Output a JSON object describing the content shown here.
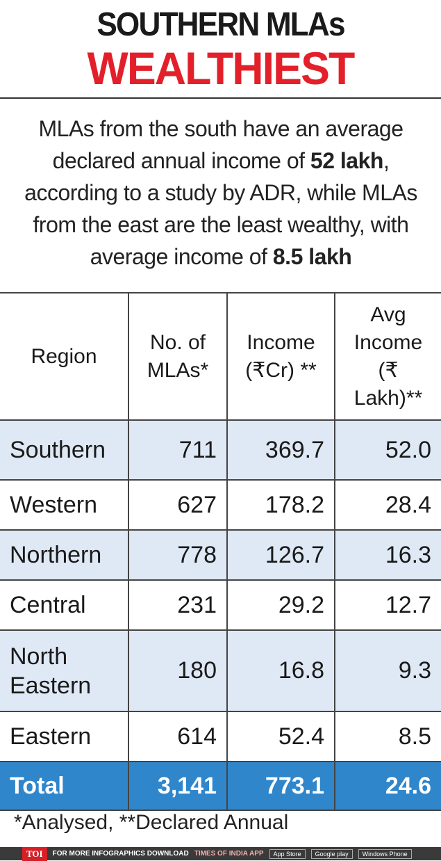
{
  "header": {
    "title_line1": "SOUTHERN MLAs",
    "title_line2": "WEALTHIEST"
  },
  "intro": [
    "MLAs from the south have an average declared annual income of ",
    "52 lakh",
    ", according to a study by ADR, while MLAs from the east are the least wealthy, with average income of ",
    "8.5 lakh"
  ],
  "table": {
    "columns": [
      "Region",
      "No. of MLAs*",
      "Income (₹Cr) **",
      "Avg Income (₹ Lakh)**"
    ],
    "rows": [
      [
        "Southern",
        "711",
        "369.7",
        "52.0"
      ],
      [
        "Western",
        "627",
        "178.2",
        "28.4"
      ],
      [
        "Northern",
        "778",
        "126.7",
        "16.3"
      ],
      [
        "Central",
        "231",
        "29.2",
        "12.7"
      ],
      [
        "North Eastern",
        "180",
        "16.8",
        "9.3"
      ],
      [
        "Eastern",
        "614",
        "52.4",
        "8.5"
      ]
    ],
    "total": [
      "Total",
      "3,141",
      "773.1",
      "24.6"
    ]
  },
  "footnote": "*Analysed, **Declared Annual",
  "footer": {
    "brand": "TOI",
    "text": "FOR MORE INFOGRAPHICS DOWNLOAD",
    "app": "TIMES OF INDIA APP",
    "badges": [
      "App Store",
      "Google play",
      "Windows Phone"
    ]
  }
}
